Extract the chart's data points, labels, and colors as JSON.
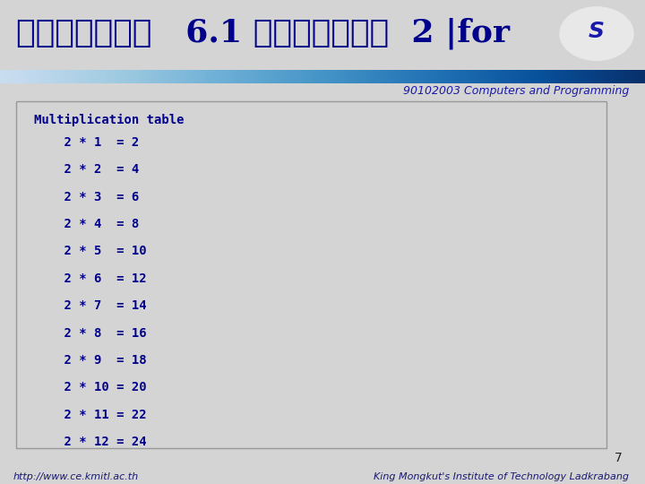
{
  "bg_color": "#d4d4d4",
  "header_bg": "#d4d4d4",
  "title_thai": "โปรแกรม   6.1 สตรคณแม  2 |for",
  "title_color": "#00008B",
  "subtitle": "90102003 Computers and Programming",
  "subtitle_color": "#1a1aaa",
  "footer_left": "http://www.ce.kmitl.ac.th",
  "footer_right": "King Mongkut's Institute of Technology Ladkrabang",
  "footer_color": "#191970",
  "page_number": "7",
  "box_bg": "#d4d4d4",
  "box_border": "#999999",
  "code_color": "#00008B",
  "header_text": "Multiplication table",
  "table_lines": [
    "    2 * 1  = 2",
    "    2 * 2  = 4",
    "    2 * 3  = 6",
    "    2 * 4  = 8",
    "    2 * 5  = 10",
    "    2 * 6  = 12",
    "    2 * 7  = 14",
    "    2 * 8  = 16",
    "    2 * 9  = 18",
    "    2 * 10 = 20",
    "    2 * 11 = 22",
    "    2 * 12 = 24"
  ],
  "title_fontsize": 26,
  "code_fontsize": 10,
  "footer_fontsize": 8,
  "subtitle_fontsize": 9
}
